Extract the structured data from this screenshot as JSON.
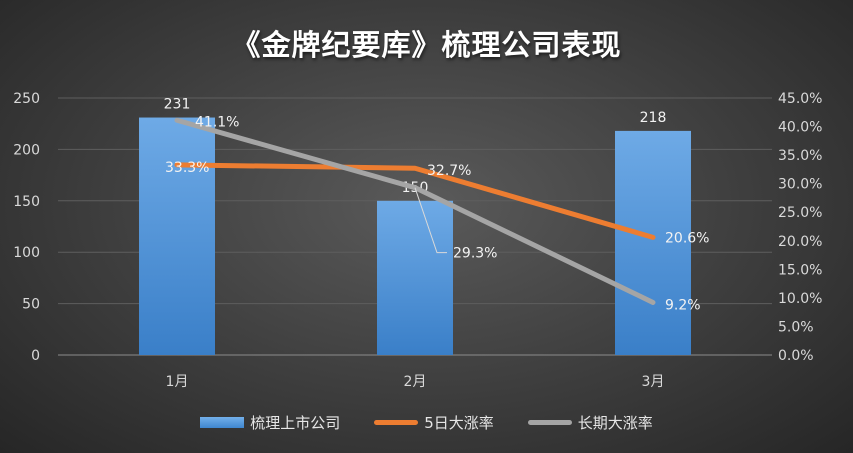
{
  "chart_data": {
    "type": "bar",
    "title": "《金牌纪要库》梳理公司表现",
    "categories": [
      "1月",
      "2月",
      "3月"
    ],
    "series": [
      {
        "name": "梳理上市公司",
        "kind": "bar",
        "axis": "left",
        "values": [
          231,
          150,
          218
        ],
        "labels": [
          "231",
          "150",
          "218"
        ],
        "color": "#4a90d9"
      },
      {
        "name": "5日大涨率",
        "kind": "line",
        "axis": "right",
        "values": [
          33.3,
          32.7,
          20.6
        ],
        "labels": [
          "33.3%",
          "32.7%",
          "20.6%"
        ],
        "color": "#ed7d31"
      },
      {
        "name": "长期大涨率",
        "kind": "line",
        "axis": "right",
        "values": [
          41.1,
          29.3,
          9.2
        ],
        "labels": [
          "41.1%",
          "29.3%",
          "9.2%"
        ],
        "color": "#a5a5a5"
      }
    ],
    "y_left": {
      "min": 0,
      "max": 250,
      "ticks": [
        "0",
        "50",
        "100",
        "150",
        "200",
        "250"
      ]
    },
    "y_right": {
      "min": 0,
      "max": 45,
      "ticks": [
        "0.0%",
        "5.0%",
        "10.0%",
        "15.0%",
        "20.0%",
        "25.0%",
        "30.0%",
        "35.0%",
        "40.0%",
        "45.0%"
      ]
    },
    "grid": true,
    "legend_position": "bottom"
  }
}
